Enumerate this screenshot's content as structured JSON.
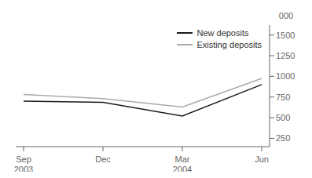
{
  "chart_data": {
    "type": "line",
    "categories": [
      "Sep\n2003",
      "Dec",
      "Mar\n2004",
      "Jun"
    ],
    "series": [
      {
        "name": "New deposits",
        "color": "#1a1a1a",
        "values": [
          700,
          685,
          520,
          900
        ]
      },
      {
        "name": "Existing deposits",
        "color": "#aaaaaa",
        "values": [
          780,
          730,
          630,
          975
        ]
      }
    ],
    "ylim": [
      150,
      1620
    ],
    "yticks": [
      250,
      500,
      750,
      1000,
      1250,
      1500
    ],
    "ylabel": "000",
    "legend": "upper right",
    "grid": false
  }
}
